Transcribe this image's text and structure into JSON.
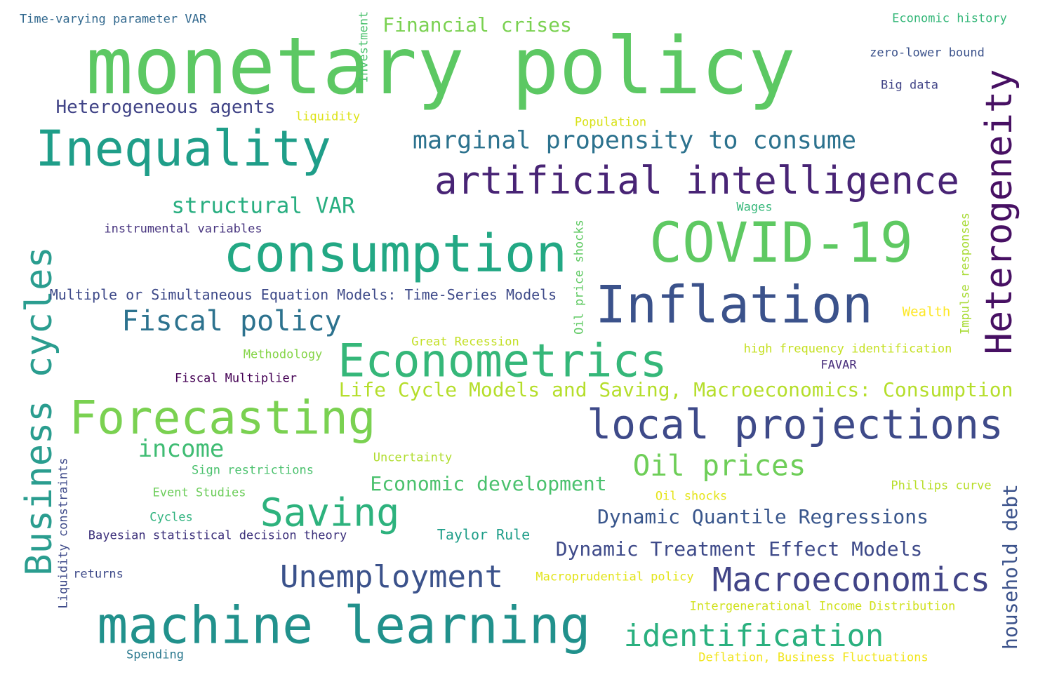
{
  "words": [
    {
      "text": "monetary policy",
      "color": "#5cc863"
    },
    {
      "text": "Inequality",
      "color": "#1f9e89"
    },
    {
      "text": "COVID-19",
      "color": "#5ec962"
    },
    {
      "text": "consumption",
      "color": "#22a884"
    },
    {
      "text": "Inflation",
      "color": "#3b528b"
    },
    {
      "text": "Econometrics",
      "color": "#35b779"
    },
    {
      "text": "Forecasting",
      "color": "#7ad151"
    },
    {
      "text": "machine learning",
      "color": "#21918c"
    },
    {
      "text": "local projections",
      "color": "#3e4a89"
    },
    {
      "text": "artificial intelligence",
      "color": "#482475"
    },
    {
      "text": "Business cycles",
      "color": "#2a9d8f"
    },
    {
      "text": "Heterogeneity",
      "color": "#471063"
    },
    {
      "text": "Saving",
      "color": "#2db27d"
    },
    {
      "text": "Macroeconomics",
      "color": "#414487"
    },
    {
      "text": "Unemployment",
      "color": "#3b528b"
    },
    {
      "text": "identification",
      "color": "#2ab07f"
    },
    {
      "text": "Oil prices",
      "color": "#6ece58"
    },
    {
      "text": "Fiscal policy",
      "color": "#2c728e"
    },
    {
      "text": "marginal propensity to consume",
      "color": "#2c728e"
    },
    {
      "text": "structural VAR",
      "color": "#28ae80"
    },
    {
      "text": "income",
      "color": "#3fbc73"
    },
    {
      "text": "Heterogeneous agents",
      "color": "#414487"
    },
    {
      "text": "Financial crises",
      "color": "#7ad151"
    },
    {
      "text": "Life Cycle Models and Saving, Macroeconomics: Consumption",
      "color": "#b5de2b"
    },
    {
      "text": "Economic development",
      "color": "#4ac16d"
    },
    {
      "text": "Dynamic Quantile Regressions",
      "color": "#39568c"
    },
    {
      "text": "Dynamic Treatment Effect Models",
      "color": "#3e4a89"
    },
    {
      "text": "household debt",
      "color": "#3b528b"
    },
    {
      "text": "Multiple or Simultaneous Equation Models: Time-Series Models",
      "color": "#3e4a89"
    },
    {
      "text": "Taylor Rule",
      "color": "#1f9e89"
    },
    {
      "text": "instrumental variables",
      "color": "#46337e"
    },
    {
      "text": "Time-varying parameter VAR",
      "color": "#31688e"
    },
    {
      "text": "Economic history",
      "color": "#35b779"
    },
    {
      "text": "zero-lower bound",
      "color": "#3b528b"
    },
    {
      "text": "Big data",
      "color": "#414487"
    },
    {
      "text": "Investment",
      "color": "#4ac16d"
    },
    {
      "text": "liquidity",
      "color": "#dde318"
    },
    {
      "text": "Population",
      "color": "#d8e219"
    },
    {
      "text": "Wages",
      "color": "#35b779"
    },
    {
      "text": "Oil price shocks",
      "color": "#5ec962"
    },
    {
      "text": "Impulse responses",
      "color": "#a8db34"
    },
    {
      "text": "Wealth",
      "color": "#fde725"
    },
    {
      "text": "Great Recession",
      "color": "#c2df23"
    },
    {
      "text": "Methodology",
      "color": "#86d549"
    },
    {
      "text": "high frequency identification",
      "color": "#c5e021"
    },
    {
      "text": "FAVAR",
      "color": "#472d7b"
    },
    {
      "text": "Fiscal Multiplier",
      "color": "#440154"
    },
    {
      "text": "Uncertainty",
      "color": "#b0dd2f"
    },
    {
      "text": "Sign restrictions",
      "color": "#4ac16d"
    },
    {
      "text": "Event Studies",
      "color": "#6ccd5a"
    },
    {
      "text": "Cycles",
      "color": "#2db27d"
    },
    {
      "text": "Bayesian statistical decision theory",
      "color": "#3b2f7a"
    },
    {
      "text": "Oil shocks",
      "color": "#e5e419"
    },
    {
      "text": "Phillips curve",
      "color": "#b8de29"
    },
    {
      "text": "Liquidity constraints",
      "color": "#3e4a89"
    },
    {
      "text": "returns",
      "color": "#3e4a89"
    },
    {
      "text": "Macroprudential policy",
      "color": "#e2e418"
    },
    {
      "text": "Intergenerational Income Distribution",
      "color": "#d0e11c"
    },
    {
      "text": "Spending",
      "color": "#2a788e"
    },
    {
      "text": "Deflation, Business Fluctuations",
      "color": "#f1e51d"
    }
  ]
}
